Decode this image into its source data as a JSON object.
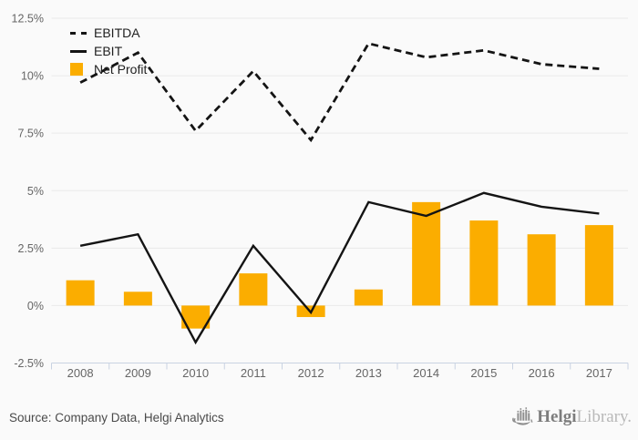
{
  "chart_data": {
    "type": "combo",
    "categories": [
      "2008",
      "2009",
      "2010",
      "2011",
      "2012",
      "2013",
      "2014",
      "2015",
      "2016",
      "2017"
    ],
    "series": [
      {
        "name": "EBITDA",
        "type": "line",
        "style": "dashed",
        "color": "#141414",
        "values": [
          9.7,
          11.0,
          7.6,
          10.2,
          7.2,
          11.4,
          10.8,
          11.1,
          10.5,
          10.3
        ]
      },
      {
        "name": "EBIT",
        "type": "line",
        "style": "solid",
        "color": "#141414",
        "values": [
          2.6,
          3.1,
          -1.6,
          2.6,
          -0.3,
          4.5,
          3.9,
          4.9,
          4.3,
          4.0
        ]
      },
      {
        "name": "Net Profit",
        "type": "bar",
        "style": "square",
        "color": "#FBAD00",
        "values": [
          1.1,
          0.6,
          -1.0,
          1.4,
          -0.5,
          0.7,
          4.5,
          3.7,
          3.1,
          3.5
        ]
      }
    ],
    "ylim": [
      -2.5,
      12.5
    ],
    "yticks": [
      12.5,
      10,
      7.5,
      5,
      2.5,
      0,
      -2.5
    ],
    "ytick_labels": [
      "12.5%",
      "10%",
      "7.5%",
      "5%",
      "2.5%",
      "0%",
      "-2.5%"
    ],
    "unit": "%",
    "grid": true,
    "legend_position": "top-left",
    "title": ""
  },
  "footer": {
    "source": "Source: Company Data, Helgi Analytics",
    "logo": {
      "icon": "helgi-ship-bars-logo-icon",
      "brand_bold": "Helgi",
      "brand_light": "Library."
    }
  },
  "colors": {
    "background": "#FAFAFA",
    "bar": "#FBAD00",
    "line": "#141414",
    "grid": "#E9E9E9",
    "axis": "#C9D3E2",
    "tick_text": "#666666",
    "legend_text": "#1F1F1F",
    "source_text": "#4A4A4A",
    "logo_dark": "#7D7D7D",
    "logo_light": "#B9B9B9"
  }
}
